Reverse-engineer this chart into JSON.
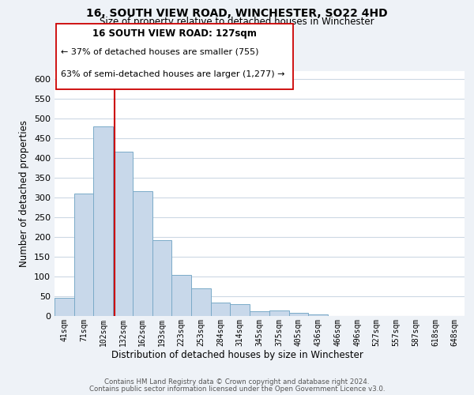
{
  "title": "16, SOUTH VIEW ROAD, WINCHESTER, SO22 4HD",
  "subtitle": "Size of property relative to detached houses in Winchester",
  "xlabel": "Distribution of detached houses by size in Winchester",
  "ylabel": "Number of detached properties",
  "bin_labels": [
    "41sqm",
    "71sqm",
    "102sqm",
    "132sqm",
    "162sqm",
    "193sqm",
    "223sqm",
    "253sqm",
    "284sqm",
    "314sqm",
    "345sqm",
    "375sqm",
    "405sqm",
    "436sqm",
    "466sqm",
    "496sqm",
    "527sqm",
    "557sqm",
    "587sqm",
    "618sqm",
    "648sqm"
  ],
  "bar_values": [
    47,
    310,
    480,
    415,
    315,
    193,
    105,
    70,
    35,
    30,
    13,
    14,
    8,
    5,
    0,
    0,
    0,
    0,
    0,
    0,
    0
  ],
  "bar_color": "#c8d8ea",
  "bar_edge_color": "#7aaac8",
  "vline_color": "#cc0000",
  "vline_x": 2.57,
  "ylim": [
    0,
    620
  ],
  "yticks": [
    0,
    50,
    100,
    150,
    200,
    250,
    300,
    350,
    400,
    450,
    500,
    550,
    600
  ],
  "annotation_title": "16 SOUTH VIEW ROAD: 127sqm",
  "annotation_line1": "← 37% of detached houses are smaller (755)",
  "annotation_line2": "63% of semi-detached houses are larger (1,277) →",
  "footer1": "Contains HM Land Registry data © Crown copyright and database right 2024.",
  "footer2": "Contains public sector information licensed under the Open Government Licence v3.0.",
  "bg_color": "#eef2f7",
  "plot_bg_color": "#ffffff",
  "grid_color": "#cdd8e4"
}
